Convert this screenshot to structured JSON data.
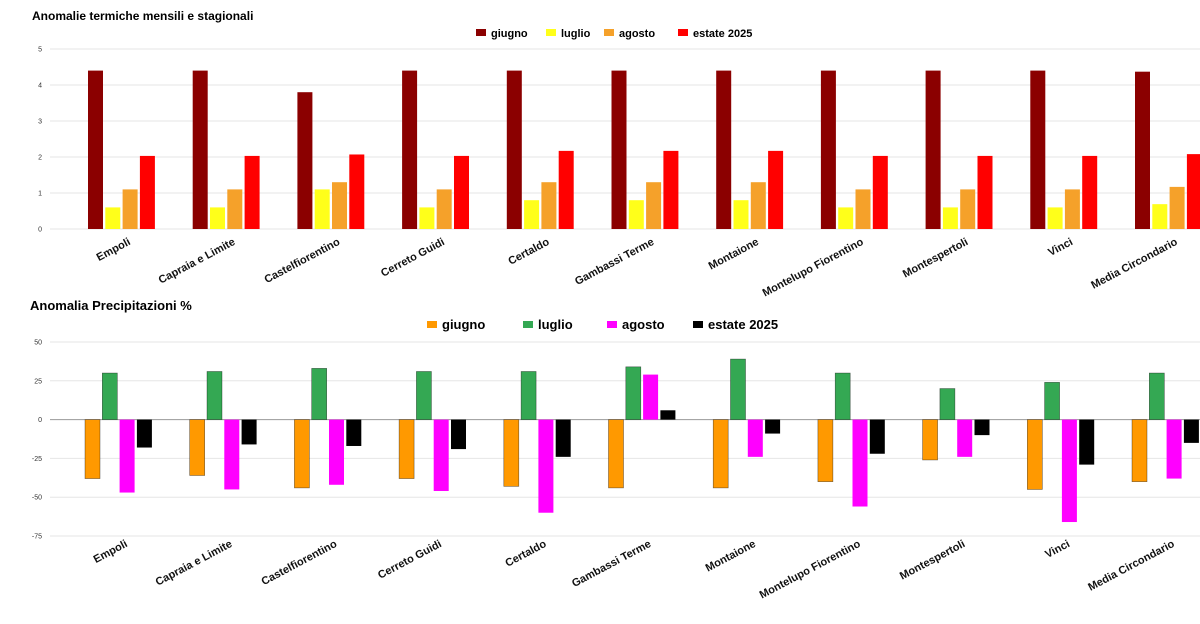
{
  "chart_data": [
    {
      "type": "bar",
      "title": "Anomalie termiche mensili e stagionali",
      "categories": [
        "Empoli",
        "Capraia e Limite",
        "Castelfiorentino",
        "Cerreto Guidi",
        "Certaldo",
        "Gambassi Terme",
        "Montaione",
        "Montelupo Fiorentino",
        "Montespertoli",
        "Vinci",
        "Media Circondario"
      ],
      "ylim": [
        0,
        5
      ],
      "yticks": [
        0,
        1,
        2,
        3,
        4,
        5
      ],
      "grid": true,
      "legend_position": "top-center",
      "series": [
        {
          "name": "giugno",
          "color": "#8b0000",
          "values": [
            4.4,
            4.4,
            3.8,
            4.4,
            4.4,
            4.4,
            4.4,
            4.4,
            4.4,
            4.4,
            4.37
          ]
        },
        {
          "name": "luglio",
          "color": "#ffff1a",
          "values": [
            0.6,
            0.6,
            1.1,
            0.6,
            0.8,
            0.8,
            0.8,
            0.6,
            0.6,
            0.6,
            0.69
          ]
        },
        {
          "name": "agosto",
          "color": "#f5a12a",
          "values": [
            1.1,
            1.1,
            1.3,
            1.1,
            1.3,
            1.3,
            1.3,
            1.1,
            1.1,
            1.1,
            1.17
          ]
        },
        {
          "name": "estate 2025",
          "color": "#ff0000",
          "values": [
            2.03,
            2.03,
            2.07,
            2.03,
            2.17,
            2.17,
            2.17,
            2.03,
            2.03,
            2.03,
            2.08
          ]
        }
      ]
    },
    {
      "type": "bar",
      "title": "Anomalia Precipitazioni %",
      "categories": [
        "Empoli",
        "Capraia e Limite",
        "Castelfiorentino",
        "Cerreto Guidi",
        "Certaldo",
        "Gambassi Terme",
        "Montaione",
        "Montelupo Fiorentino",
        "Montespertoli",
        "Vinci",
        "Media Circondario"
      ],
      "ylim": [
        -75,
        50
      ],
      "yticks": [
        -75,
        -50,
        -25,
        0,
        25,
        50
      ],
      "grid": true,
      "legend_position": "top-center",
      "series": [
        {
          "name": "giugno",
          "color": "#ff9900",
          "values": [
            -38,
            -36,
            -44,
            -38,
            -43,
            -44,
            -44,
            -40,
            -26,
            -45,
            -40
          ]
        },
        {
          "name": "luglio",
          "color": "#34a853",
          "values": [
            30,
            31,
            33,
            31,
            31,
            34,
            39,
            30,
            20,
            24,
            30
          ]
        },
        {
          "name": "agosto",
          "color": "#ff00ff",
          "values": [
            -47,
            -45,
            -42,
            -46,
            -60,
            29,
            -24,
            -56,
            -24,
            -66,
            -38
          ]
        },
        {
          "name": "estate 2025",
          "color": "#000000",
          "values": [
            -18,
            -16,
            -17,
            -19,
            -24,
            6,
            -9,
            -22,
            -10,
            -29,
            -15
          ]
        }
      ]
    }
  ]
}
